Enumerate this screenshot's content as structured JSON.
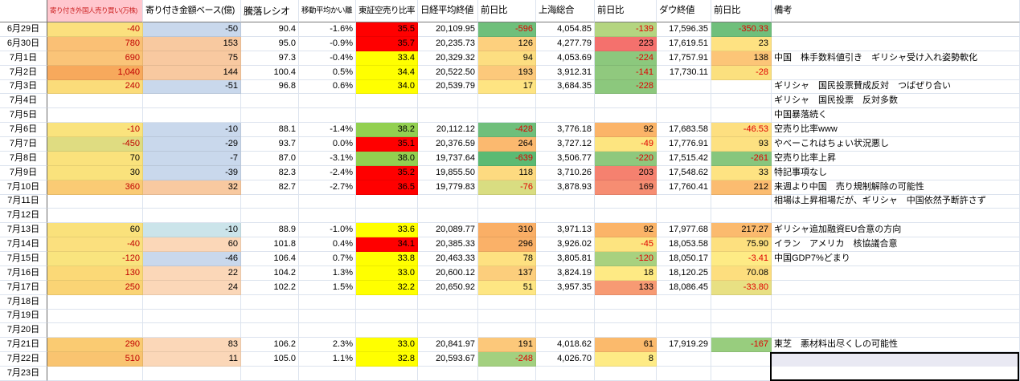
{
  "sheet": {
    "headers": [
      {
        "label": "",
        "name": "corner"
      },
      {
        "label": "寄り付き外国人売り買い(万株)",
        "name": "col-foreign-open",
        "bg": "#FFC7CE",
        "fg": "#CC2222",
        "size": 8.5
      },
      {
        "label": "寄り付き金額ベース(億)",
        "name": "col-amount-base",
        "size": 11
      },
      {
        "label": "騰落レシオ",
        "name": "col-updown-ratio",
        "size": 12
      },
      {
        "label": "移動平均かい離",
        "name": "col-ma-deviation",
        "size": 9.5
      },
      {
        "label": "東証空売り比率",
        "name": "col-short-ratio",
        "size": 10.5
      },
      {
        "label": "日経平均終値",
        "name": "col-nikkei-close",
        "size": 11.5
      },
      {
        "label": "前日比",
        "name": "col-nikkei-diff",
        "size": 11.5
      },
      {
        "label": "上海総合",
        "name": "col-shanghai",
        "size": 11.5
      },
      {
        "label": "前日比",
        "name": "col-shanghai-diff",
        "size": 11.5
      },
      {
        "label": "ダウ終値",
        "name": "col-dow-close",
        "size": 11.5
      },
      {
        "label": "前日比",
        "name": "col-dow-diff",
        "size": 11.5
      },
      {
        "label": "備考",
        "name": "col-remarks",
        "size": 11.5
      }
    ],
    "rows": [
      {
        "date": "6月29日",
        "cells": [
          {
            "t": "-40",
            "b": "#FBE07E",
            "f": "#C00000"
          },
          {
            "t": "-50",
            "b": "#C9D8EC"
          },
          {
            "t": "90.4"
          },
          {
            "t": "-1.6%"
          },
          {
            "t": "35.5",
            "b": "#FF0000"
          },
          {
            "t": "20,109.95"
          },
          {
            "t": "-596",
            "b": "#6FBF7B",
            "f": "#E00000"
          },
          {
            "t": "4,054.85"
          },
          {
            "t": "-139",
            "b": "#B4D580",
            "f": "#E00000"
          },
          {
            "t": "17,596.35"
          },
          {
            "t": "-350.33",
            "b": "#6FBF7B",
            "f": "#E00000"
          }
        ],
        "note": ""
      },
      {
        "date": "6月30日",
        "cells": [
          {
            "t": "780",
            "b": "#FAC075",
            "f": "#C00000"
          },
          {
            "t": "153",
            "b": "#F8C9A0"
          },
          {
            "t": "95.0"
          },
          {
            "t": "-0.9%"
          },
          {
            "t": "35.7",
            "b": "#FF0000"
          },
          {
            "t": "20,235.73"
          },
          {
            "t": "126",
            "b": "#FDD07E"
          },
          {
            "t": "4,277.79"
          },
          {
            "t": "223",
            "b": "#F4716D"
          },
          {
            "t": "17,619.51"
          },
          {
            "t": "23",
            "b": "#FEE282"
          }
        ],
        "note": ""
      },
      {
        "date": "7月1日",
        "cells": [
          {
            "t": "690",
            "b": "#FAC478",
            "f": "#C00000"
          },
          {
            "t": "75",
            "b": "#F8C9A0"
          },
          {
            "t": "97.3"
          },
          {
            "t": "-0.4%"
          },
          {
            "t": "33.4",
            "b": "#FFFF00"
          },
          {
            "t": "20,329.32"
          },
          {
            "t": "94",
            "b": "#FDDE81"
          },
          {
            "t": "4,053.69"
          },
          {
            "t": "-224",
            "b": "#8CC87D",
            "f": "#E00000"
          },
          {
            "t": "17,757.91"
          },
          {
            "t": "138",
            "b": "#FCC577"
          }
        ],
        "note": "中国　株手数料値引き　ギリシャ受け入れ姿勢軟化"
      },
      {
        "date": "7月2日",
        "cells": [
          {
            "t": "1,040",
            "b": "#F7A95C",
            "f": "#C00000"
          },
          {
            "t": "144",
            "b": "#F8C9A0"
          },
          {
            "t": "100.4"
          },
          {
            "t": "0.5%"
          },
          {
            "t": "34.4",
            "b": "#FFFF00"
          },
          {
            "t": "20,522.50"
          },
          {
            "t": "193",
            "b": "#FCC97B"
          },
          {
            "t": "3,912.31"
          },
          {
            "t": "-141",
            "b": "#90C97E",
            "f": "#E00000"
          },
          {
            "t": "17,730.11"
          },
          {
            "t": "-28",
            "b": "#FBE07E",
            "f": "#E00000"
          }
        ],
        "note": ""
      },
      {
        "date": "7月3日",
        "cells": [
          {
            "t": "240",
            "b": "#FBDC7A",
            "f": "#C00000"
          },
          {
            "t": "-51",
            "b": "#C9D8EC"
          },
          {
            "t": "96.8"
          },
          {
            "t": "0.6%"
          },
          {
            "t": "34.0",
            "b": "#FFFF00"
          },
          {
            "t": "20,539.79"
          },
          {
            "t": "17",
            "b": "#FEE482"
          },
          {
            "t": "3,684.35"
          },
          {
            "t": "-228",
            "b": "#8CC87D",
            "f": "#E00000"
          },
          null,
          null
        ],
        "note": "ギリシャ　国民投票賛成反対　つばぜり合い"
      },
      {
        "date": "7月4日",
        "cells": [
          null,
          null,
          null,
          null,
          null,
          null,
          null,
          null,
          null,
          null,
          null
        ],
        "note": "ギリシャ　国民投票　反対多数"
      },
      {
        "date": "7月5日",
        "cells": [
          null,
          null,
          null,
          null,
          null,
          null,
          null,
          null,
          null,
          null,
          null
        ],
        "note": "中国暴落続く"
      },
      {
        "date": "7月6日",
        "cells": [
          {
            "t": "-10",
            "b": "#FAE37D",
            "f": "#C00000"
          },
          {
            "t": "-10",
            "b": "#C9D8EC"
          },
          {
            "t": "88.1"
          },
          {
            "t": "-1.4%"
          },
          {
            "t": "38.2",
            "b": "#92D050"
          },
          {
            "t": "20,112.12"
          },
          {
            "t": "-428",
            "b": "#6FBF7B",
            "f": "#E00000"
          },
          {
            "t": "3,776.18"
          },
          {
            "t": "92",
            "b": "#FBB468"
          },
          {
            "t": "17,683.58"
          },
          {
            "t": "-46.53",
            "b": "#FDDF80",
            "f": "#E00000"
          }
        ],
        "note": "空売り比率www"
      },
      {
        "date": "7月7日",
        "cells": [
          {
            "t": "-450",
            "b": "#DFDC81",
            "f": "#C00000"
          },
          {
            "t": "-29",
            "b": "#C9D8EC"
          },
          {
            "t": "93.7"
          },
          {
            "t": "0.0%"
          },
          {
            "t": "35.1",
            "b": "#FF0000"
          },
          {
            "t": "20,376.59"
          },
          {
            "t": "264",
            "b": "#FBB96F"
          },
          {
            "t": "3,727.12"
          },
          {
            "t": "-49",
            "b": "#FDE580",
            "f": "#E00000"
          },
          {
            "t": "17,776.91"
          },
          {
            "t": "93",
            "b": "#FDE181"
          }
        ],
        "note": "やべーこれはちょい状況悪し"
      },
      {
        "date": "7月8日",
        "cells": [
          {
            "t": "70",
            "b": "#FAE27C"
          },
          {
            "t": "-7",
            "b": "#C9D8EC"
          },
          {
            "t": "87.0"
          },
          {
            "t": "-3.1%"
          },
          {
            "t": "38.0",
            "b": "#92D050"
          },
          {
            "t": "19,737.64"
          },
          {
            "t": "-639",
            "b": "#5BBA73",
            "f": "#E00000"
          },
          {
            "t": "3,506.77"
          },
          {
            "t": "-220",
            "b": "#8EC87D",
            "f": "#E00000"
          },
          {
            "t": "17,515.42"
          },
          {
            "t": "-261",
            "b": "#87C67D",
            "f": "#E00000"
          }
        ],
        "note": "空売り比率上昇"
      },
      {
        "date": "7月9日",
        "cells": [
          {
            "t": "30",
            "b": "#FAE27C"
          },
          {
            "t": "-39",
            "b": "#C9D8EC"
          },
          {
            "t": "82.3"
          },
          {
            "t": "-2.4%"
          },
          {
            "t": "35.2",
            "b": "#FF0000"
          },
          {
            "t": "19,855.50"
          },
          {
            "t": "118",
            "b": "#FDDA80"
          },
          {
            "t": "3,710.26"
          },
          {
            "t": "203",
            "b": "#F5816F"
          },
          {
            "t": "17,548.62"
          },
          {
            "t": "33",
            "b": "#FEE382"
          }
        ],
        "note": "特記事項なし"
      },
      {
        "date": "7月10日",
        "cells": [
          {
            "t": "360",
            "b": "#FACB74",
            "f": "#C00000"
          },
          {
            "t": "32",
            "b": "#F8C9A0"
          },
          {
            "t": "82.7"
          },
          {
            "t": "-2.7%"
          },
          {
            "t": "36.5",
            "b": "#FF0000"
          },
          {
            "t": "19,779.83"
          },
          {
            "t": "-76",
            "b": "#D9DD81",
            "f": "#E00000"
          },
          {
            "t": "3,878.93"
          },
          {
            "t": "169",
            "b": "#F68D72"
          },
          {
            "t": "17,760.41"
          },
          {
            "t": "212",
            "b": "#FBBC70"
          }
        ],
        "note": "来週より中国　売り規制解除の可能性"
      },
      {
        "date": "7月11日",
        "cells": [
          null,
          null,
          null,
          null,
          null,
          null,
          null,
          null,
          null,
          null,
          null
        ],
        "note": "相場は上昇相場だが、ギリシャ　中国依然予断許さず"
      },
      {
        "date": "7月12日",
        "cells": [
          null,
          null,
          null,
          null,
          null,
          null,
          null,
          null,
          null,
          null,
          null
        ],
        "note": ""
      },
      {
        "date": "7月13日",
        "cells": [
          {
            "t": "60",
            "b": "#FAE17B"
          },
          {
            "t": "-10",
            "b": "#CBE4EA"
          },
          {
            "t": "88.9"
          },
          {
            "t": "-1.0%"
          },
          {
            "t": "33.6",
            "b": "#FFFF00"
          },
          {
            "t": "20,089.77"
          },
          {
            "t": "310",
            "b": "#FAAF66"
          },
          {
            "t": "3,971.13"
          },
          {
            "t": "92",
            "b": "#FBB468"
          },
          {
            "t": "17,977.68"
          },
          {
            "t": "217.27",
            "b": "#FBBA6E"
          }
        ],
        "note": "ギリシャ追加融資EU合意の方向"
      },
      {
        "date": "7月14日",
        "cells": [
          {
            "t": "-40",
            "b": "#FBE07E",
            "f": "#C00000"
          },
          {
            "t": "60",
            "b": "#FBD7B8"
          },
          {
            "t": "101.8"
          },
          {
            "t": "0.4%"
          },
          {
            "t": "34.1",
            "b": "#FF0000"
          },
          {
            "t": "20,385.33"
          },
          {
            "t": "296",
            "b": "#FAB168"
          },
          {
            "t": "3,926.02"
          },
          {
            "t": "-45",
            "b": "#FDE480",
            "f": "#E00000"
          },
          {
            "t": "18,053.58"
          },
          {
            "t": "75.90",
            "b": "#FDE07F"
          }
        ],
        "note": "イラン　アメリカ　核協議合意"
      },
      {
        "date": "7月15日",
        "cells": [
          {
            "t": "-120",
            "b": "#F9E47E",
            "f": "#C00000"
          },
          {
            "t": "-46",
            "b": "#C9D8EC"
          },
          {
            "t": "106.4"
          },
          {
            "t": "0.7%"
          },
          {
            "t": "33.8",
            "b": "#FFFF00"
          },
          {
            "t": "20,463.33"
          },
          {
            "t": "78",
            "b": "#FEE181"
          },
          {
            "t": "3,805.81"
          },
          {
            "t": "-120",
            "b": "#A8D17F",
            "f": "#E00000"
          },
          {
            "t": "18,050.17"
          },
          {
            "t": "-3.41",
            "b": "#FEEB85",
            "f": "#E00000"
          }
        ],
        "note": "中国GDP7%どまり"
      },
      {
        "date": "7月16日",
        "cells": [
          {
            "t": "130",
            "b": "#FBD977",
            "f": "#C00000"
          },
          {
            "t": "22",
            "b": "#FBD7B8"
          },
          {
            "t": "104.2"
          },
          {
            "t": "1.3%"
          },
          {
            "t": "33.0",
            "b": "#FFFF00"
          },
          {
            "t": "20,600.12"
          },
          {
            "t": "137",
            "b": "#FCCE7C"
          },
          {
            "t": "3,824.19"
          },
          {
            "t": "18",
            "b": "#FEEA84"
          },
          {
            "t": "18,120.25"
          },
          {
            "t": "70.08",
            "b": "#FDDE7E"
          }
        ],
        "note": ""
      },
      {
        "date": "7月17日",
        "cells": [
          {
            "t": "250",
            "b": "#FAD475",
            "f": "#C00000"
          },
          {
            "t": "24",
            "b": "#FBD7B8"
          },
          {
            "t": "102.2"
          },
          {
            "t": "1.5%"
          },
          {
            "t": "32.2",
            "b": "#FFFF00"
          },
          {
            "t": "20,650.92"
          },
          {
            "t": "51",
            "b": "#FEE683"
          },
          {
            "t": "3,957.35"
          },
          {
            "t": "133",
            "b": "#F79A73"
          },
          {
            "t": "18,086.45"
          },
          {
            "t": "-33.80",
            "b": "#E8E083",
            "f": "#E00000"
          }
        ],
        "note": ""
      },
      {
        "date": "7月18日",
        "cells": [
          null,
          null,
          null,
          null,
          null,
          null,
          null,
          null,
          null,
          null,
          null
        ],
        "note": ""
      },
      {
        "date": "7月19日",
        "cells": [
          null,
          null,
          null,
          null,
          null,
          null,
          null,
          null,
          null,
          null,
          null
        ],
        "note": ""
      },
      {
        "date": "7月20日",
        "cells": [
          null,
          null,
          null,
          null,
          null,
          null,
          null,
          null,
          null,
          null,
          null
        ],
        "note": ""
      },
      {
        "date": "7月21日",
        "cells": [
          {
            "t": "290",
            "b": "#FACB72",
            "f": "#C00000"
          },
          {
            "t": "83",
            "b": "#FBD7B8"
          },
          {
            "t": "106.2"
          },
          {
            "t": "2.3%"
          },
          {
            "t": "33.0",
            "b": "#FFFF00"
          },
          {
            "t": "20,841.97"
          },
          {
            "t": "191",
            "b": "#FCC87A"
          },
          {
            "t": "4,018.62"
          },
          {
            "t": "61",
            "b": "#FBBA6C"
          },
          {
            "t": "17,919.29"
          },
          {
            "t": "-167",
            "b": "#98CD7E",
            "f": "#E00000"
          }
        ],
        "note": "東芝　悪材料出尽くしの可能性"
      },
      {
        "date": "7月22日",
        "cells": [
          {
            "t": "510",
            "b": "#F9C470",
            "f": "#C00000"
          },
          {
            "t": "11",
            "b": "#FBD7B8"
          },
          {
            "t": "105.0"
          },
          {
            "t": "1.1%"
          },
          {
            "t": "32.8",
            "b": "#FFFF00"
          },
          {
            "t": "20,593.67"
          },
          {
            "t": "-248",
            "b": "#A3D07F",
            "f": "#E00000"
          },
          {
            "t": "4,026.70"
          },
          {
            "t": "8",
            "b": "#FEEB85"
          },
          null,
          null
        ],
        "note": "",
        "note_selected": true
      },
      {
        "date": "7月23日",
        "cells": [
          null,
          null,
          null,
          null,
          null,
          null,
          null,
          null,
          null,
          null,
          null
        ],
        "note": "",
        "note_selected": true
      }
    ],
    "selection": {
      "column": "備考",
      "dates": [
        "7月22日",
        "7月23日"
      ],
      "fill_top": "#E9E9F3",
      "border_color": "#000000"
    },
    "colors": {
      "short_ratio_high": "#FF0000",
      "short_ratio_mid": "#FFFF00",
      "short_ratio_low": "#92D050",
      "negative_text": "#E00000",
      "foreign_col_text": "#C00000",
      "header_pink_bg": "#FFC7CE",
      "gridline": "#DCE3EE"
    }
  }
}
